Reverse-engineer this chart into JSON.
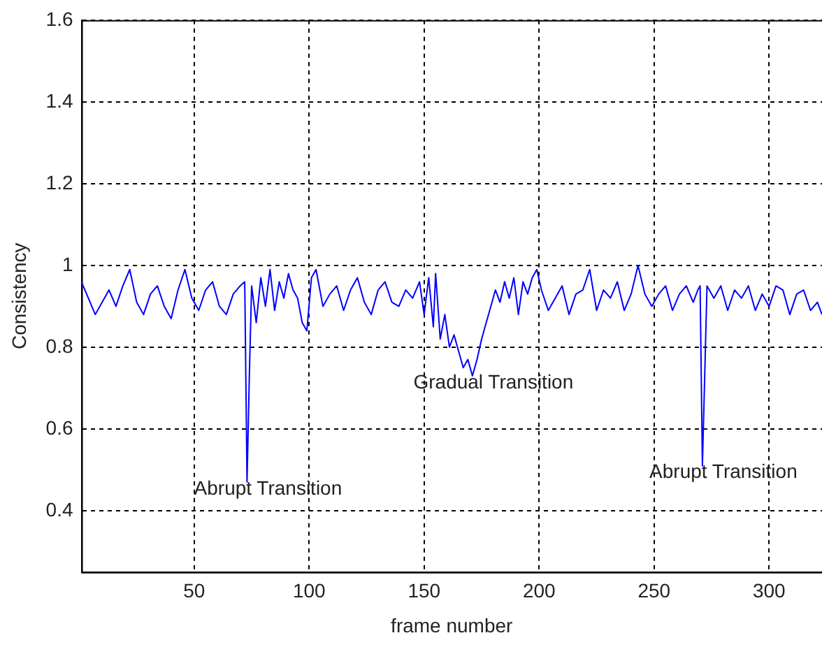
{
  "chart_data": {
    "type": "line",
    "xlabel": "frame number",
    "ylabel": "Consistency",
    "x": [
      1,
      4,
      7,
      10,
      13,
      16,
      19,
      22,
      25,
      28,
      31,
      34,
      37,
      40,
      43,
      46,
      49,
      52,
      55,
      58,
      61,
      64,
      67,
      70,
      72,
      73,
      74,
      75,
      77,
      79,
      81,
      83,
      85,
      87,
      89,
      91,
      93,
      95,
      97,
      99,
      101,
      103,
      106,
      109,
      112,
      115,
      118,
      121,
      124,
      127,
      130,
      133,
      136,
      139,
      142,
      145,
      148,
      150,
      152,
      154,
      155,
      157,
      159,
      161,
      163,
      165,
      167,
      169,
      171,
      173,
      175,
      177,
      179,
      181,
      183,
      185,
      187,
      189,
      191,
      193,
      195,
      197,
      199,
      201,
      204,
      207,
      210,
      213,
      216,
      219,
      222,
      225,
      228,
      231,
      234,
      237,
      240,
      243,
      246,
      249,
      252,
      255,
      258,
      261,
      264,
      267,
      269,
      270,
      271,
      272,
      273,
      276,
      279,
      282,
      285,
      288,
      291,
      294,
      297,
      300,
      303,
      306,
      309,
      312,
      315,
      318,
      321,
      323
    ],
    "series": [
      {
        "color": "#0000ff",
        "values": [
          0.96,
          0.92,
          0.88,
          0.91,
          0.94,
          0.9,
          0.95,
          0.99,
          0.91,
          0.88,
          0.93,
          0.95,
          0.9,
          0.87,
          0.94,
          0.99,
          0.92,
          0.89,
          0.94,
          0.96,
          0.9,
          0.88,
          0.93,
          0.95,
          0.96,
          0.47,
          0.73,
          0.95,
          0.86,
          0.97,
          0.9,
          0.99,
          0.89,
          0.96,
          0.92,
          0.98,
          0.94,
          0.92,
          0.86,
          0.84,
          0.97,
          0.99,
          0.9,
          0.93,
          0.95,
          0.89,
          0.94,
          0.97,
          0.91,
          0.88,
          0.94,
          0.96,
          0.91,
          0.9,
          0.94,
          0.92,
          0.96,
          0.88,
          0.97,
          0.85,
          0.98,
          0.82,
          0.88,
          0.8,
          0.83,
          0.79,
          0.75,
          0.77,
          0.73,
          0.77,
          0.82,
          0.86,
          0.9,
          0.94,
          0.91,
          0.96,
          0.92,
          0.97,
          0.88,
          0.96,
          0.93,
          0.97,
          0.99,
          0.94,
          0.89,
          0.92,
          0.95,
          0.88,
          0.93,
          0.94,
          0.99,
          0.89,
          0.94,
          0.92,
          0.96,
          0.89,
          0.93,
          1.0,
          0.93,
          0.9,
          0.93,
          0.95,
          0.89,
          0.93,
          0.95,
          0.91,
          0.94,
          0.95,
          0.51,
          0.73,
          0.95,
          0.92,
          0.95,
          0.89,
          0.94,
          0.92,
          0.95,
          0.89,
          0.93,
          0.9,
          0.95,
          0.94,
          0.88,
          0.93,
          0.94,
          0.89,
          0.91,
          0.88
        ]
      }
    ],
    "xlim": [
      1,
      323
    ],
    "xticks": [
      50,
      100,
      150,
      200,
      250,
      300
    ],
    "ylim": [
      0.25,
      1.6
    ],
    "yticks": [
      0.4,
      0.6,
      0.8,
      1,
      1.2,
      1.4,
      1.6
    ],
    "grid": true,
    "legend": false,
    "marker": "none",
    "line_style": "solid",
    "annotations": [
      {
        "text": "Abrupt Transition",
        "x": 73,
        "y": 0.47
      },
      {
        "text": "Gradual Transition",
        "x": 171,
        "y": 0.73
      },
      {
        "text": "Abrupt Transition",
        "x": 271,
        "y": 0.51
      }
    ]
  }
}
